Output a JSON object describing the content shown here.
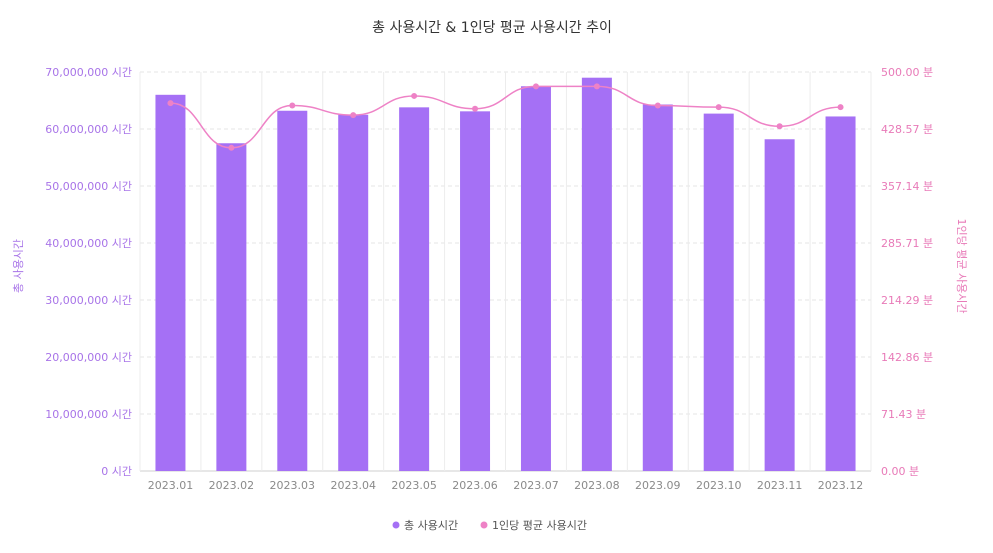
{
  "chart_data": {
    "type": "bar+line",
    "title": "총 사용시간 & 1인당 평균 사용시간 추이",
    "categories": [
      "2023.01",
      "2023.02",
      "2023.03",
      "2023.04",
      "2023.05",
      "2023.06",
      "2023.07",
      "2023.08",
      "2023.09",
      "2023.10",
      "2023.11",
      "2023.12"
    ],
    "series": [
      {
        "name": "총 사용시간",
        "type": "bar",
        "axis": "left",
        "color": "#a570f5",
        "values": [
          66000000,
          57500000,
          63200000,
          62500000,
          63800000,
          63100000,
          67500000,
          69000000,
          64300000,
          62700000,
          58200000,
          62200000
        ]
      },
      {
        "name": "1인당 평균 사용시간",
        "type": "line",
        "axis": "right",
        "color": "#ee82c6",
        "values": [
          461,
          405,
          458,
          446,
          470,
          454,
          482,
          482,
          458,
          456,
          432,
          456
        ]
      }
    ],
    "left_axis": {
      "title": "총 사용시간",
      "range": [
        0,
        70000000
      ],
      "ticks": [
        "0 시간",
        "10,000,000 시간",
        "20,000,000 시간",
        "30,000,000 시간",
        "40,000,000 시간",
        "50,000,000 시간",
        "60,000,000 시간",
        "70,000,000 시간"
      ]
    },
    "right_axis": {
      "title": "1인당 평균 사용시간",
      "range": [
        0,
        500
      ],
      "ticks": [
        "0.00 분",
        "71.43 분",
        "142.86 분",
        "214.29 분",
        "285.71 분",
        "357.14 분",
        "428.57 분",
        "500.00 분"
      ]
    },
    "grid": true,
    "legend_position": "bottom-center"
  }
}
